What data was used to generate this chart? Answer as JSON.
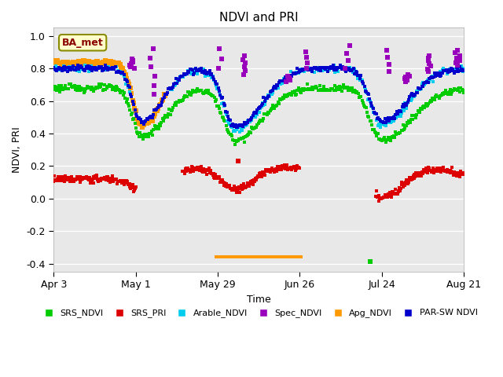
{
  "title": "NDVI and PRI",
  "xlabel": "Time",
  "ylabel": "NDVI, PRI",
  "annotation": "BA_met",
  "ylim": [
    -0.45,
    1.05
  ],
  "xlim": [
    0,
    140
  ],
  "xtick_positions": [
    0,
    28,
    56,
    84,
    112,
    140
  ],
  "xtick_labels": [
    "Apr 3",
    "May 1",
    "May 29",
    "Jun 26",
    "Jul 24",
    "Aug 21"
  ],
  "ytick_positions": [
    -0.4,
    -0.2,
    0.0,
    0.2,
    0.4,
    0.6,
    0.8,
    1.0
  ],
  "colors": {
    "SRS_NDVI": "#00cc00",
    "SRS_PRI": "#dd0000",
    "Arable_NDVI": "#00ccee",
    "Spec_NDVI": "#9900bb",
    "Apg_NDVI": "#ff9900",
    "PAR_SW_NDVI": "#0000cc"
  },
  "legend_labels": [
    "SRS_NDVI",
    "SRS_PRI",
    "Arable_NDVI",
    "Spec_NDVI",
    "Apg_NDVI",
    "PAR-SW NDVI"
  ],
  "plot_bg_color": "#e8e8e8"
}
